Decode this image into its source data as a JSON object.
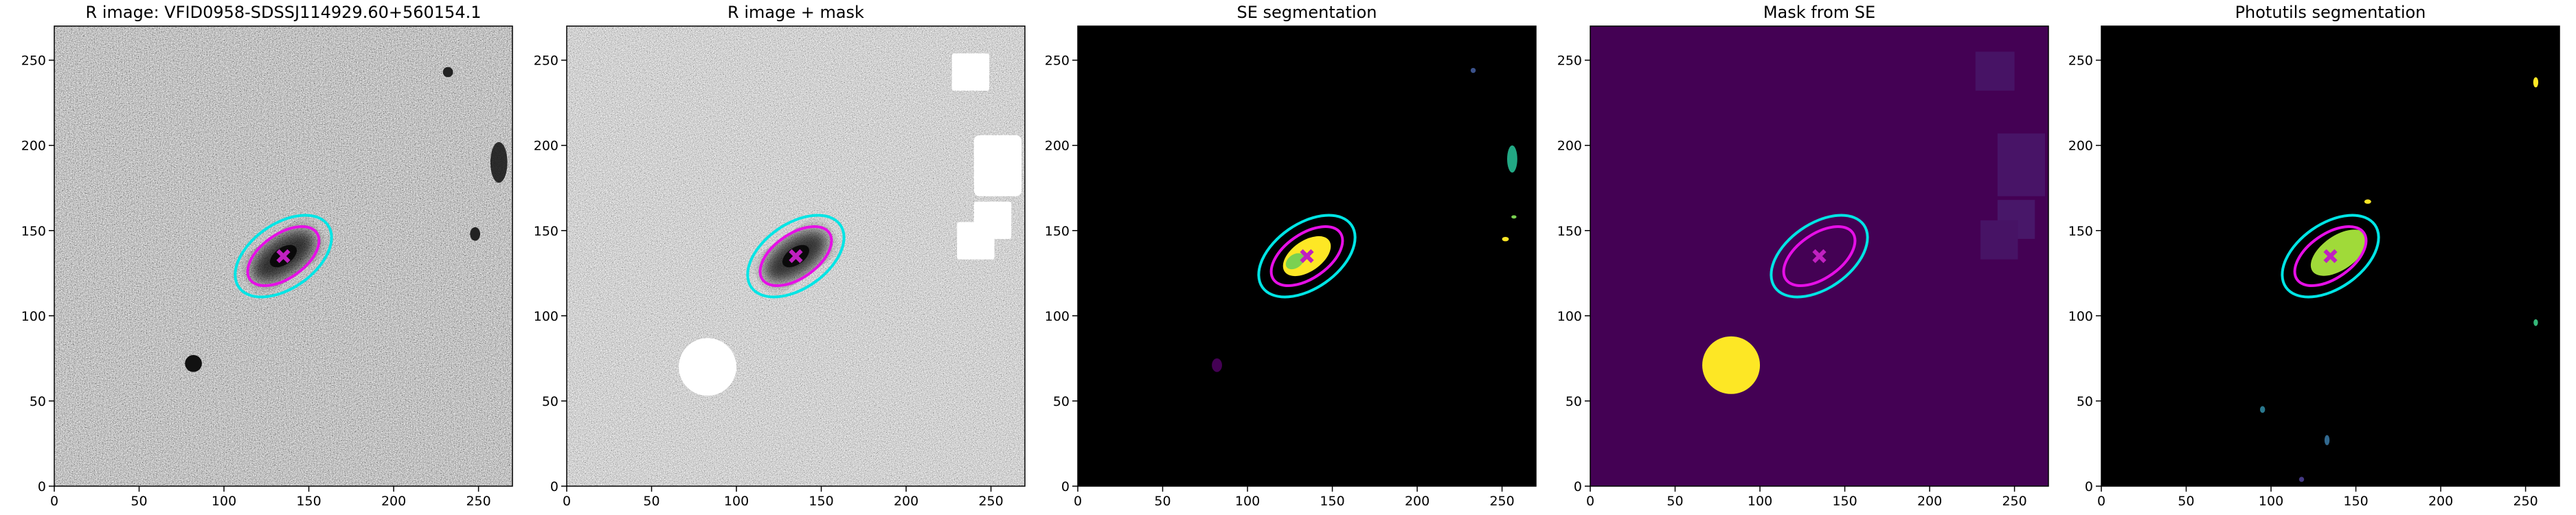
{
  "chart_data": [
    {
      "type": "image",
      "title": "R image: VFID0958-SDSSJ114929.60+560154.1",
      "xlim": [
        0,
        270
      ],
      "ylim": [
        0,
        270
      ],
      "xticks": [
        0,
        50,
        100,
        150,
        200,
        250
      ],
      "yticks": [
        0,
        50,
        100,
        150,
        200,
        250
      ]
    },
    {
      "type": "image",
      "title": "R image + mask",
      "xlim": [
        0,
        270
      ],
      "ylim": [
        0,
        270
      ],
      "xticks": [
        0,
        50,
        100,
        150,
        200,
        250
      ],
      "yticks": [
        0,
        50,
        100,
        150,
        200,
        250
      ]
    },
    {
      "type": "image",
      "title": "SE segmentation",
      "xlim": [
        0,
        270
      ],
      "ylim": [
        0,
        270
      ],
      "xticks": [
        0,
        50,
        100,
        150,
        200,
        250
      ],
      "yticks": [
        0,
        50,
        100,
        150,
        200,
        250
      ]
    },
    {
      "type": "image",
      "title": "Mask from SE",
      "xlim": [
        0,
        270
      ],
      "ylim": [
        0,
        270
      ],
      "xticks": [
        0,
        50,
        100,
        150,
        200,
        250
      ],
      "yticks": [
        0,
        50,
        100,
        150,
        200,
        250
      ]
    },
    {
      "type": "image",
      "title": "Photutils segmentation",
      "xlim": [
        0,
        270
      ],
      "ylim": [
        0,
        270
      ],
      "xticks": [
        0,
        50,
        100,
        150,
        200,
        250
      ],
      "yticks": [
        0,
        50,
        100,
        150,
        200,
        250
      ]
    }
  ]
}
